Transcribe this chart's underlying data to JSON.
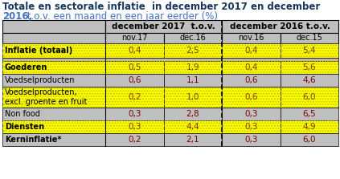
{
  "title_line1": "Totale en sectorale inflatie  in december 2017 en december",
  "title_line2_bold": "2016,",
  "title_line2_normal": " t.o.v. een maand en een jaar eerder (%)",
  "col_headers_top": [
    "december 2017  t.o.v.",
    "december 2016 t.o.v."
  ],
  "col_headers_sub": [
    "nov.17",
    "dec.16",
    "nov.16",
    "dec.15"
  ],
  "rows": [
    {
      "label": "Inflatie (totaal)",
      "bold": true,
      "yellow": true,
      "separator_after": true,
      "values": [
        "0,4",
        "2,5",
        "0,4",
        "5,4"
      ]
    },
    {
      "label": "Goederen",
      "bold": true,
      "yellow": true,
      "separator_after": false,
      "values": [
        "0,5",
        "1,9",
        "0,4",
        "5,6"
      ]
    },
    {
      "label": "Voedselproducten",
      "bold": false,
      "yellow": false,
      "separator_after": false,
      "values": [
        "0,6",
        "1,1",
        "0,6",
        "4,6"
      ]
    },
    {
      "label": "Voedselproducten,\nexcl. groente en fruit",
      "bold": false,
      "yellow": true,
      "separator_after": false,
      "values": [
        "0,2",
        "1,0",
        "0,6",
        "6,0"
      ]
    },
    {
      "label": "Non food",
      "bold": false,
      "yellow": false,
      "separator_after": false,
      "values": [
        "0,3",
        "2,8",
        "0,3",
        "6,5"
      ]
    },
    {
      "label": "Diensten",
      "bold": true,
      "yellow": true,
      "separator_after": false,
      "values": [
        "0,3",
        "4,4",
        "0,3",
        "4,9"
      ]
    },
    {
      "label": "Kerninflatie*",
      "bold": true,
      "yellow": false,
      "separator_after": false,
      "values": [
        "0,2",
        "2,1",
        "0,3",
        "6,0"
      ]
    }
  ],
  "colors": {
    "title_blue": "#4472C4",
    "title_dark": "#17375E",
    "header_bg": "#BFBFBF",
    "yellow_bg": "#FFFF00",
    "gray_bg": "#BFBFBF",
    "separator_tan": "#C4B89A",
    "border": "#000000",
    "text_dark": "#000000",
    "text_value_yellow": "#7F3F00",
    "text_value_gray": "#7F0000",
    "dashed_line": "#000000"
  },
  "figsize": [
    4.23,
    2.23
  ],
  "dpi": 100
}
